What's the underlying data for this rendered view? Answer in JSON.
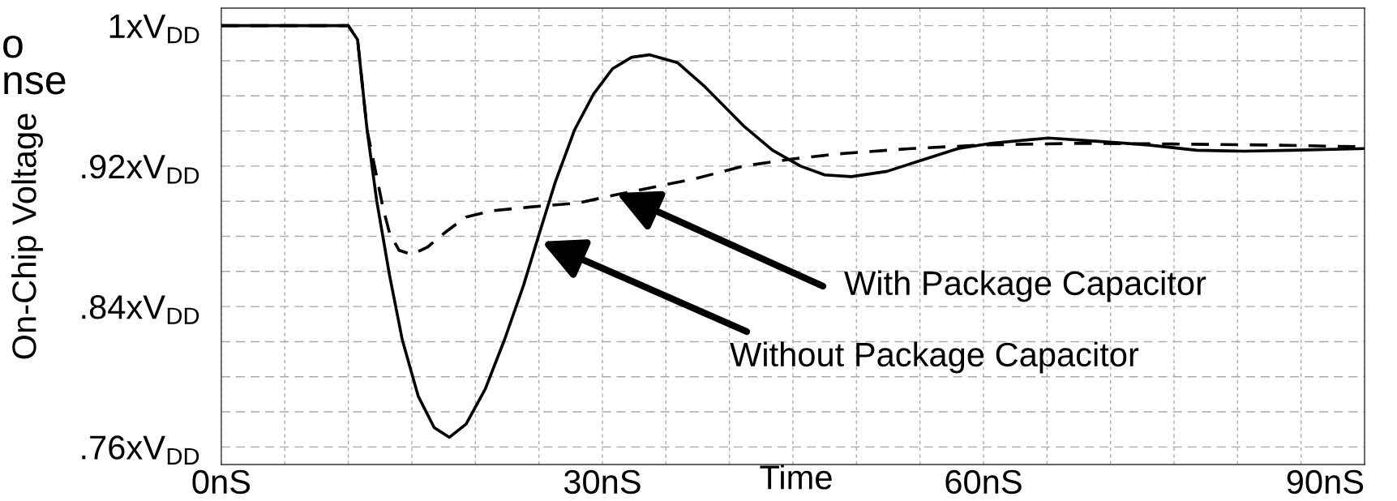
{
  "chart_data": {
    "type": "line",
    "xlabel": "Time",
    "ylabel": "On-Chip Voltage",
    "xlim": [
      0,
      90
    ],
    "ylim": [
      0.75,
      1.01
    ],
    "xticks": [
      {
        "value": 0,
        "label": "0nS"
      },
      {
        "value": 5,
        "label": null
      },
      {
        "value": 10,
        "label": null
      },
      {
        "value": 15,
        "label": null
      },
      {
        "value": 20,
        "label": null
      },
      {
        "value": 25,
        "label": null
      },
      {
        "value": 30,
        "label": "30nS"
      },
      {
        "value": 35,
        "label": null
      },
      {
        "value": 40,
        "label": null
      },
      {
        "value": 45,
        "label": null
      },
      {
        "value": 50,
        "label": null
      },
      {
        "value": 55,
        "label": null
      },
      {
        "value": 60,
        "label": "60nS"
      },
      {
        "value": 65,
        "label": null
      },
      {
        "value": 70,
        "label": null
      },
      {
        "value": 75,
        "label": null
      },
      {
        "value": 80,
        "label": null
      },
      {
        "value": 85,
        "label": null
      },
      {
        "value": 90,
        "label": "90nS"
      }
    ],
    "yticks": [
      {
        "value": 0.76,
        "label": ".76xV$_{DD}$"
      },
      {
        "value": 0.78,
        "label": null
      },
      {
        "value": 0.8,
        "label": null
      },
      {
        "value": 0.82,
        "label": null
      },
      {
        "value": 0.84,
        "label": ".84xV$_{DD}$"
      },
      {
        "value": 0.86,
        "label": null
      },
      {
        "value": 0.88,
        "label": null
      },
      {
        "value": 0.9,
        "label": null
      },
      {
        "value": 0.92,
        "label": ".92xV$_{DD}$"
      },
      {
        "value": 0.94,
        "label": null
      },
      {
        "value": 0.96,
        "label": null
      },
      {
        "value": 0.98,
        "label": null
      },
      {
        "value": 1.0,
        "label": "1xV$_{DD}$"
      }
    ],
    "grid": true,
    "marker": "none",
    "series": [
      {
        "color": "#000000",
        "line_style": "solid",
        "x": [
          0,
          10.0,
          10.73,
          11.48,
          12.24,
          13.24,
          14.25,
          15.5,
          16.76,
          17.96,
          19.27,
          20.78,
          22.29,
          23.79,
          25.05,
          26.3,
          27.8,
          29.3,
          30.8,
          32.3,
          33.7,
          35.9,
          38.1,
          41.1,
          43.4,
          45.6,
          47.5,
          49.6,
          52.4,
          55.4,
          58.0,
          60.6,
          65.1,
          69.3,
          73.0,
          76.8,
          80.5,
          84.3,
          90.0
        ],
        "values": [
          1.0,
          1.0,
          0.992,
          0.9405,
          0.9,
          0.858,
          0.821,
          0.789,
          0.771,
          0.7655,
          0.773,
          0.793,
          0.821,
          0.852,
          0.882,
          0.911,
          0.9405,
          0.961,
          0.9755,
          0.982,
          0.9834,
          0.979,
          0.965,
          0.943,
          0.929,
          0.92,
          0.915,
          0.914,
          0.917,
          0.924,
          0.93,
          0.933,
          0.936,
          0.934,
          0.932,
          0.929,
          0.9285,
          0.929,
          0.93
        ]
      },
      {
        "color": "#000000",
        "line_style": "dashed",
        "x": [
          0,
          10.0,
          10.73,
          11.48,
          12.74,
          13.24,
          14.0,
          15.0,
          16.26,
          17.76,
          19.27,
          21.28,
          24.3,
          28.07,
          31.3,
          33.6,
          37.4,
          41.1,
          44.9,
          48.6,
          54.3,
          59.9,
          67.4,
          74.9,
          82.4,
          90.0
        ],
        "values": [
          1.0,
          1.0,
          0.992,
          0.9405,
          0.896,
          0.882,
          0.872,
          0.8696,
          0.874,
          0.883,
          0.891,
          0.8945,
          0.8967,
          0.899,
          0.904,
          0.9074,
          0.913,
          0.92,
          0.924,
          0.927,
          0.93,
          0.932,
          0.933,
          0.9326,
          0.932,
          0.931
        ]
      }
    ],
    "annotations": [
      "With Package Capacitor",
      "Without Package Capacitor",
      "o",
      "nse"
    ]
  }
}
